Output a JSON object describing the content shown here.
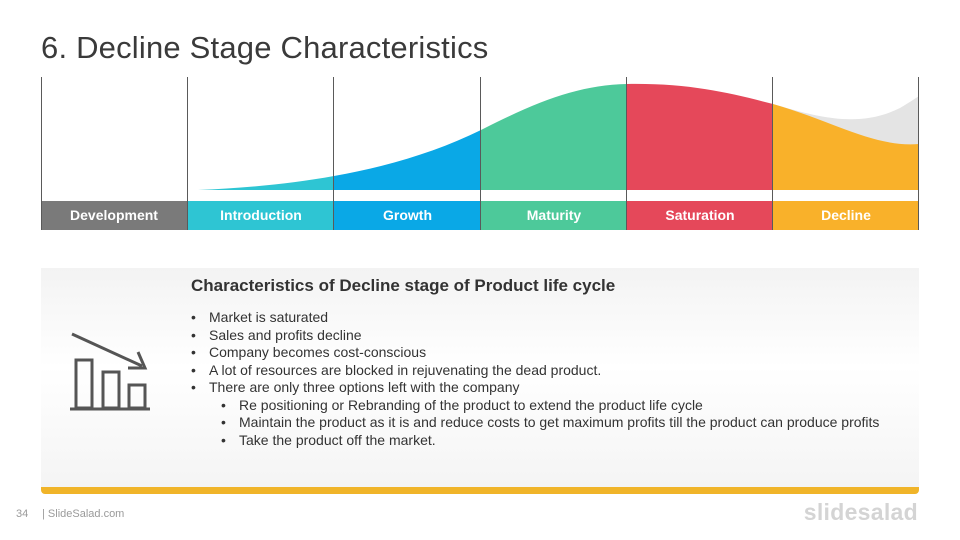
{
  "title": "6. Decline Stage Characteristics",
  "stages": [
    {
      "label": "Development",
      "color": "#7a7a7a"
    },
    {
      "label": "Introduction",
      "color": "#2ec5d3"
    },
    {
      "label": "Growth",
      "color": "#0aa8e6"
    },
    {
      "label": "Maturity",
      "color": "#4dc99a"
    },
    {
      "label": "Saturation",
      "color": "#e5485a"
    },
    {
      "label": "Decline",
      "color": "#f9b12a"
    }
  ],
  "panel": {
    "icon": "declining-bar-chart-icon",
    "heading": "Characteristics of Decline stage of Product life cycle",
    "bullets": [
      "Market is saturated",
      "Sales and profits decline",
      "Company becomes cost-conscious",
      "A lot of resources are blocked in rejuvenating the dead product.",
      "There are only three options left with the company"
    ],
    "sub_bullets": [
      "Re positioning or Rebranding of the product to extend the product life cycle",
      "Maintain the product as it is and reduce costs to get maximum profits till the product can produce profits",
      "Take the product off the market."
    ],
    "accent_color": "#f0b429"
  },
  "footer": {
    "page_number": "34",
    "site": "| SlideSalad.com",
    "brand": "slidesalad"
  }
}
